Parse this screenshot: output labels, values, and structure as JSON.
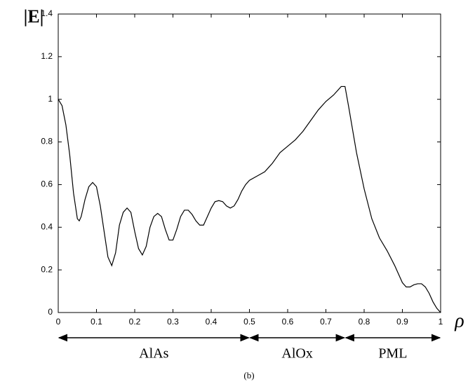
{
  "chart_data": {
    "type": "line",
    "ylabel": "|E|",
    "xlabel": "ρ",
    "caption": "(b)",
    "x": [
      0,
      0.01,
      0.02,
      0.03,
      0.04,
      0.05,
      0.055,
      0.06,
      0.07,
      0.08,
      0.09,
      0.1,
      0.11,
      0.12,
      0.13,
      0.14,
      0.15,
      0.16,
      0.17,
      0.18,
      0.19,
      0.2,
      0.21,
      0.22,
      0.23,
      0.24,
      0.25,
      0.26,
      0.27,
      0.28,
      0.29,
      0.3,
      0.31,
      0.32,
      0.33,
      0.34,
      0.35,
      0.36,
      0.37,
      0.38,
      0.39,
      0.4,
      0.41,
      0.42,
      0.43,
      0.44,
      0.45,
      0.46,
      0.47,
      0.48,
      0.49,
      0.5,
      0.52,
      0.54,
      0.56,
      0.58,
      0.6,
      0.62,
      0.64,
      0.66,
      0.68,
      0.7,
      0.72,
      0.74,
      0.75,
      0.76,
      0.78,
      0.8,
      0.82,
      0.84,
      0.86,
      0.88,
      0.9,
      0.91,
      0.92,
      0.93,
      0.94,
      0.95,
      0.96,
      0.97,
      0.98,
      0.99,
      1
    ],
    "series": [
      {
        "color": "#000000",
        "values": [
          1,
          0.97,
          0.88,
          0.74,
          0.56,
          0.44,
          0.43,
          0.45,
          0.53,
          0.59,
          0.61,
          0.59,
          0.5,
          0.38,
          0.26,
          0.22,
          0.28,
          0.41,
          0.47,
          0.49,
          0.47,
          0.38,
          0.3,
          0.27,
          0.31,
          0.4,
          0.45,
          0.465,
          0.45,
          0.39,
          0.34,
          0.34,
          0.39,
          0.45,
          0.48,
          0.48,
          0.46,
          0.43,
          0.41,
          0.41,
          0.45,
          0.49,
          0.52,
          0.525,
          0.52,
          0.5,
          0.49,
          0.5,
          0.53,
          0.57,
          0.6,
          0.62,
          0.64,
          0.66,
          0.7,
          0.75,
          0.78,
          0.81,
          0.85,
          0.9,
          0.95,
          0.99,
          1.02,
          1.06,
          1.06,
          0.96,
          0.75,
          0.58,
          0.44,
          0.35,
          0.29,
          0.22,
          0.14,
          0.12,
          0.12,
          0.13,
          0.135,
          0.135,
          0.12,
          0.09,
          0.05,
          0.02,
          0
        ]
      }
    ],
    "xlim": [
      0,
      1
    ],
    "ylim": [
      0,
      1.4
    ],
    "xticks": [
      0,
      0.1,
      0.2,
      0.3,
      0.4,
      0.5,
      0.6,
      0.7,
      0.8,
      0.9,
      1
    ],
    "yticks": [
      0,
      0.2,
      0.4,
      0.6,
      0.8,
      1,
      1.2,
      1.4
    ],
    "grid": false,
    "regions": [
      {
        "label": "AlAs",
        "from": 0,
        "to": 0.5
      },
      {
        "label": "AlOx",
        "from": 0.5,
        "to": 0.75
      },
      {
        "label": "PML",
        "from": 0.75,
        "to": 1
      }
    ]
  }
}
